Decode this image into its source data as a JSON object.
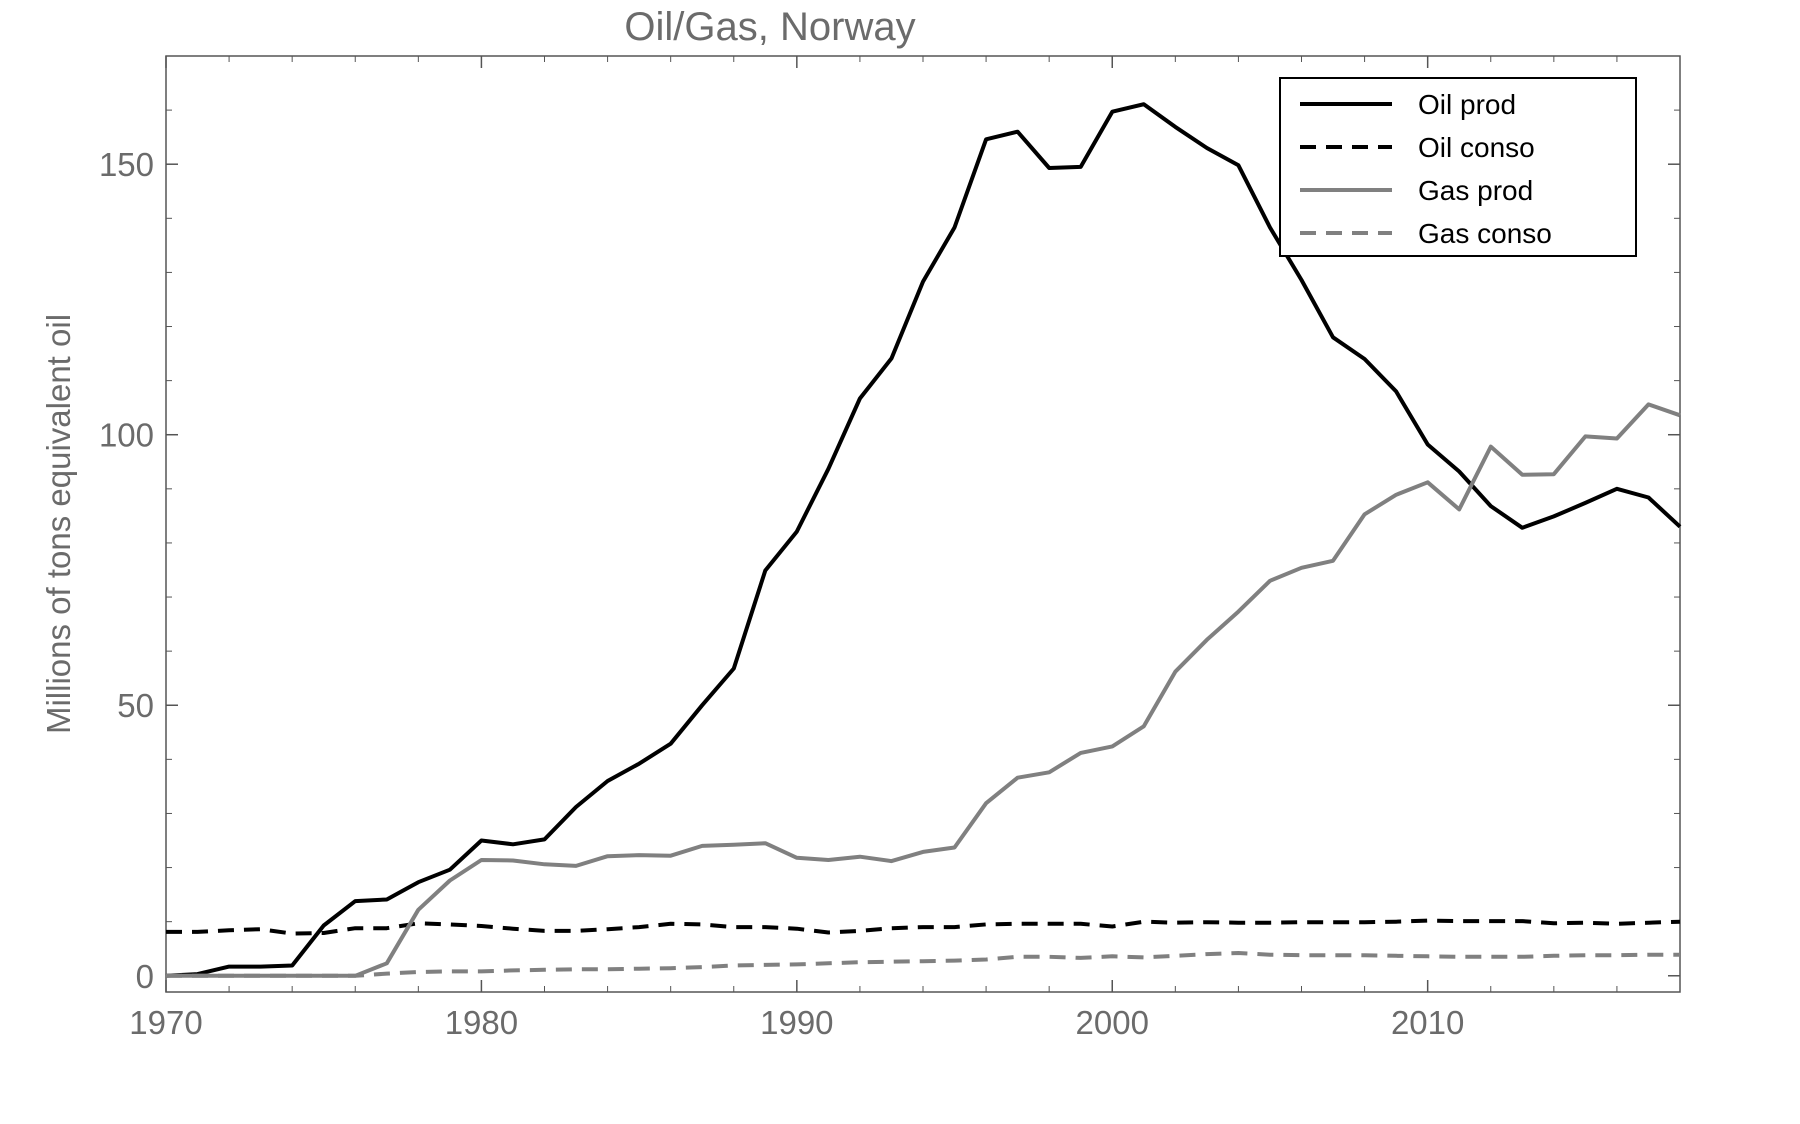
{
  "chart_data": {
    "type": "line",
    "title": "Oil/Gas, Norway",
    "xlabel": "",
    "ylabel": "Millions of tons equivalent oil",
    "xlim": [
      1970,
      2018
    ],
    "ylim": [
      -3,
      170
    ],
    "x_ticks": [
      1970,
      1980,
      1990,
      2000,
      2010
    ],
    "y_ticks": [
      0,
      50,
      100,
      150
    ],
    "grid": false,
    "legend_position": "top-right",
    "x": [
      1970,
      1971,
      1972,
      1973,
      1974,
      1975,
      1976,
      1977,
      1978,
      1979,
      1980,
      1981,
      1982,
      1983,
      1984,
      1985,
      1986,
      1987,
      1988,
      1989,
      1990,
      1991,
      1992,
      1993,
      1994,
      1995,
      1996,
      1997,
      1998,
      1999,
      2000,
      2001,
      2002,
      2003,
      2004,
      2005,
      2006,
      2007,
      2008,
      2009,
      2010,
      2011,
      2012,
      2013,
      2014,
      2015,
      2016,
      2017,
      2018
    ],
    "series": [
      {
        "name": "Oil prod",
        "color": "#000000",
        "dash": "solid",
        "values": [
          0,
          0.3,
          1.7,
          1.7,
          1.9,
          9.3,
          13.8,
          14.1,
          17.3,
          19.6,
          25.0,
          24.3,
          25.2,
          31.2,
          36.0,
          39.2,
          42.9,
          50.0,
          56.8,
          74.9,
          82.1,
          93.7,
          106.7,
          114.1,
          128.3,
          138.3,
          154.6,
          156.0,
          149.3,
          149.5,
          159.7,
          161.1,
          156.9,
          153.0,
          149.8,
          138.3,
          128.6,
          118.0,
          114.0,
          108.0,
          98.2,
          93.2,
          86.8,
          82.8,
          84.9,
          87.4,
          90.0,
          88.4,
          83.0
        ]
      },
      {
        "name": "Oil conso",
        "color": "#000000",
        "dash": "dashed",
        "values": [
          8.1,
          8.1,
          8.4,
          8.6,
          7.8,
          7.9,
          8.8,
          8.8,
          9.7,
          9.5,
          9.2,
          8.7,
          8.3,
          8.3,
          8.6,
          9.0,
          9.6,
          9.5,
          9.0,
          9.0,
          8.7,
          8.0,
          8.3,
          8.8,
          9.0,
          9.0,
          9.5,
          9.6,
          9.6,
          9.6,
          9.1,
          10.0,
          9.8,
          9.9,
          9.8,
          9.8,
          9.9,
          9.9,
          9.9,
          10.0,
          10.2,
          10.1,
          10.1,
          10.1,
          9.7,
          9.8,
          9.6,
          9.8,
          10.0
        ]
      },
      {
        "name": "Gas prod",
        "color": "#808080",
        "dash": "solid",
        "values": [
          0,
          0,
          0,
          0,
          0,
          0,
          0,
          2.3,
          12.2,
          17.6,
          21.4,
          21.3,
          20.6,
          20.3,
          22.1,
          22.3,
          22.2,
          24.0,
          24.2,
          24.5,
          21.8,
          21.4,
          22.0,
          21.2,
          22.9,
          23.7,
          31.9,
          36.6,
          37.6,
          41.2,
          42.4,
          46.1,
          56.2,
          62.1,
          67.3,
          73.0,
          75.4,
          76.7,
          85.3,
          88.9,
          91.2,
          86.2,
          97.8,
          92.6,
          92.7,
          99.7,
          99.3,
          105.6,
          103.6
        ]
      },
      {
        "name": "Gas conso",
        "color": "#808080",
        "dash": "dashed",
        "values": [
          0,
          0,
          0,
          0,
          0,
          0,
          0,
          0.4,
          0.7,
          0.8,
          0.8,
          1.0,
          1.1,
          1.2,
          1.2,
          1.3,
          1.4,
          1.6,
          1.9,
          2.0,
          2.1,
          2.3,
          2.5,
          2.6,
          2.7,
          2.8,
          3.0,
          3.5,
          3.5,
          3.3,
          3.6,
          3.4,
          3.7,
          4.0,
          4.2,
          3.9,
          3.8,
          3.8,
          3.8,
          3.7,
          3.6,
          3.5,
          3.5,
          3.5,
          3.7,
          3.8,
          3.8,
          3.9,
          3.9
        ]
      }
    ]
  }
}
